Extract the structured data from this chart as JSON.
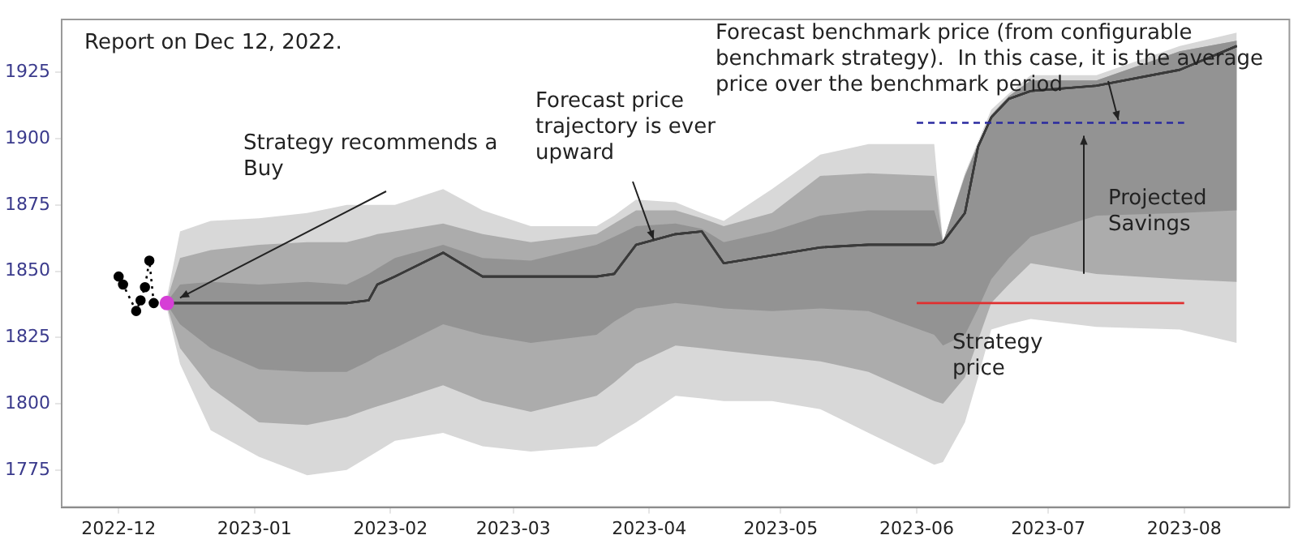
{
  "chart_data": {
    "type": "line",
    "title": "Report on Dec 12, 2022.",
    "xlim": [
      "2022-11-18",
      "2023-08-25"
    ],
    "xticks": [
      "2022-12",
      "2023-01",
      "2023-02",
      "2023-03",
      "2023-04",
      "2023-05",
      "2023-06",
      "2023-07",
      "2023-08"
    ],
    "ylim": [
      1761,
      1945
    ],
    "yticks": [
      1775,
      1800,
      1825,
      1850,
      1875,
      1900,
      1925
    ],
    "grid": false,
    "legend": false,
    "series": [
      {
        "type": "line",
        "color": "#3a3a3a",
        "x": [
          "2022-12-12",
          "2022-12-15",
          "2022-12-22",
          "2023-01-02",
          "2023-01-13",
          "2023-01-22",
          "2023-01-27",
          "2023-01-29",
          "2023-02-02",
          "2023-02-13",
          "2023-02-22",
          "2023-03-05",
          "2023-03-20",
          "2023-03-24",
          "2023-03-29",
          "2023-04-07",
          "2023-04-13",
          "2023-04-18",
          "2023-04-29",
          "2023-05-10",
          "2023-05-21",
          "2023-06-05",
          "2023-06-07",
          "2023-06-12",
          "2023-06-15",
          "2023-06-18",
          "2023-06-22",
          "2023-06-27",
          "2023-07-12",
          "2023-07-31",
          "2023-08-13"
        ],
        "values": [
          1838,
          1838,
          1838,
          1838,
          1838,
          1838,
          1839,
          1845,
          1848,
          1857,
          1848,
          1848,
          1848,
          1849,
          1860,
          1864,
          1865,
          1853,
          1856,
          1859,
          1860,
          1860,
          1861,
          1872,
          1897,
          1908,
          1915,
          1918,
          1920,
          1926,
          1935
        ],
        "upper": [
          1840,
          1865,
          1869,
          1870,
          1872,
          1875,
          1875,
          1875,
          1875,
          1881,
          1873,
          1867,
          1867,
          1871,
          1877,
          1876,
          1872,
          1869,
          1881,
          1894,
          1898,
          1898,
          1861,
          1887,
          1899,
          1911,
          1917,
          1924,
          1924,
          1935,
          1940
        ],
        "lower": [
          1836,
          1815,
          1790,
          1780,
          1773,
          1775,
          1780,
          1782,
          1786,
          1789,
          1784,
          1782,
          1784,
          1788,
          1793,
          1803,
          1802,
          1801,
          1801,
          1798,
          1789,
          1777,
          1778,
          1793,
          1810,
          1828,
          1830,
          1832,
          1829,
          1828,
          1823
        ]
      },
      {
        "type": "line",
        "color": "#3a3a3a",
        "x": [
          "2022-12-12",
          "2022-12-15",
          "2022-12-22",
          "2023-01-02",
          "2023-01-13",
          "2023-01-22",
          "2023-01-27",
          "2023-01-29",
          "2023-02-02",
          "2023-02-13",
          "2023-02-22",
          "2023-03-05",
          "2023-03-20",
          "2023-03-24",
          "2023-03-29",
          "2023-04-07",
          "2023-04-13",
          "2023-04-18",
          "2023-04-29",
          "2023-05-10",
          "2023-05-21",
          "2023-06-05",
          "2023-06-07",
          "2023-06-12",
          "2023-06-15",
          "2023-06-18",
          "2023-06-22",
          "2023-06-27",
          "2023-07-12",
          "2023-07-31",
          "2023-08-13"
        ],
        "values": [
          1838,
          1838,
          1838,
          1838,
          1838,
          1838,
          1839,
          1845,
          1848,
          1857,
          1848,
          1848,
          1848,
          1849,
          1860,
          1864,
          1865,
          1853,
          1856,
          1859,
          1860,
          1860,
          1861,
          1872,
          1897,
          1908,
          1915,
          1918,
          1920,
          1926,
          1935
        ],
        "upper": [
          1839,
          1855,
          1858,
          1860,
          1861,
          1861,
          1863,
          1864,
          1865,
          1868,
          1864,
          1861,
          1864,
          1868,
          1873,
          1873,
          1870,
          1867,
          1872,
          1886,
          1887,
          1886,
          1861,
          1886,
          1898,
          1909,
          1916,
          1922,
          1922,
          1933,
          1937
        ],
        "lower": [
          1837,
          1821,
          1806,
          1793,
          1792,
          1795,
          1798,
          1799,
          1801,
          1807,
          1801,
          1797,
          1803,
          1808,
          1815,
          1822,
          1821,
          1820,
          1818,
          1816,
          1812,
          1801,
          1800,
          1810,
          1824,
          1838,
          1845,
          1853,
          1849,
          1847,
          1846
        ]
      },
      {
        "type": "line",
        "color": "#3a3a3a",
        "x": [
          "2022-12-12",
          "2022-12-15",
          "2022-12-22",
          "2023-01-02",
          "2023-01-13",
          "2023-01-22",
          "2023-01-27",
          "2023-01-29",
          "2023-02-02",
          "2023-02-13",
          "2023-02-22",
          "2023-03-05",
          "2023-03-20",
          "2023-03-24",
          "2023-03-29",
          "2023-04-07",
          "2023-04-13",
          "2023-04-18",
          "2023-04-29",
          "2023-05-10",
          "2023-05-21",
          "2023-06-05",
          "2023-06-07",
          "2023-06-12",
          "2023-06-15",
          "2023-06-18",
          "2023-06-22",
          "2023-06-27",
          "2023-07-12",
          "2023-07-31",
          "2023-08-13"
        ],
        "values": [
          1838,
          1838,
          1838,
          1838,
          1838,
          1838,
          1839,
          1845,
          1848,
          1857,
          1848,
          1848,
          1848,
          1849,
          1860,
          1864,
          1865,
          1853,
          1856,
          1859,
          1860,
          1860,
          1861,
          1872,
          1897,
          1908,
          1915,
          1918,
          1920,
          1926,
          1935
        ],
        "upper": [
          1838.5,
          1845,
          1846,
          1845,
          1846,
          1845,
          1849,
          1851,
          1855,
          1860,
          1855,
          1854,
          1860,
          1863,
          1867,
          1868,
          1866,
          1861,
          1865,
          1871,
          1873,
          1873,
          1861,
          1886,
          1898,
          1909,
          1916,
          1922,
          1922,
          1933,
          1937
        ],
        "lower": [
          1837.5,
          1830,
          1821,
          1813,
          1812,
          1812,
          1816,
          1818,
          1821,
          1830,
          1826,
          1823,
          1826,
          1831,
          1836,
          1838,
          1837,
          1836,
          1835,
          1836,
          1835,
          1826,
          1822,
          1826,
          1836,
          1847,
          1855,
          1863,
          1871,
          1872,
          1873
        ]
      },
      {
        "type": "line",
        "color": "#000000",
        "marker": "circle",
        "line_style": "dotted",
        "x": [
          "2022-12-01",
          "2022-12-02",
          "2022-12-05",
          "2022-12-06",
          "2022-12-07",
          "2022-12-08",
          "2022-12-09"
        ],
        "values": [
          1848,
          1845,
          1835,
          1839,
          1844,
          1854,
          1838
        ]
      },
      {
        "type": "scatter",
        "color": "#d63fd6",
        "marker": "circle",
        "x": [
          "2022-12-12"
        ],
        "values": [
          1838
        ]
      },
      {
        "type": "line",
        "color": "#e03030",
        "x": [
          "2023-06-01",
          "2023-08-01"
        ],
        "values": [
          1838,
          1838
        ]
      },
      {
        "type": "line",
        "color": "#2a2aa0",
        "line_style": "dashed",
        "x": [
          "2023-06-01",
          "2023-08-01"
        ],
        "values": [
          1906,
          1906
        ]
      }
    ],
    "annotations": [
      {
        "text": " Strategy recommends a Buy",
        "x": "2022-12-15",
        "y": 1840
      },
      {
        "text": "Forecast price trajectory is ever upward",
        "x": "2023-04-02",
        "y": 1862
      },
      {
        "text": "Forecast benchmark price (from configurable benchmark strategy).  In this case, it is the average price over the benchmark period",
        "x": "2023-07-17",
        "y": 1907
      },
      "Projected Savings",
      "Strategy price"
    ]
  }
}
